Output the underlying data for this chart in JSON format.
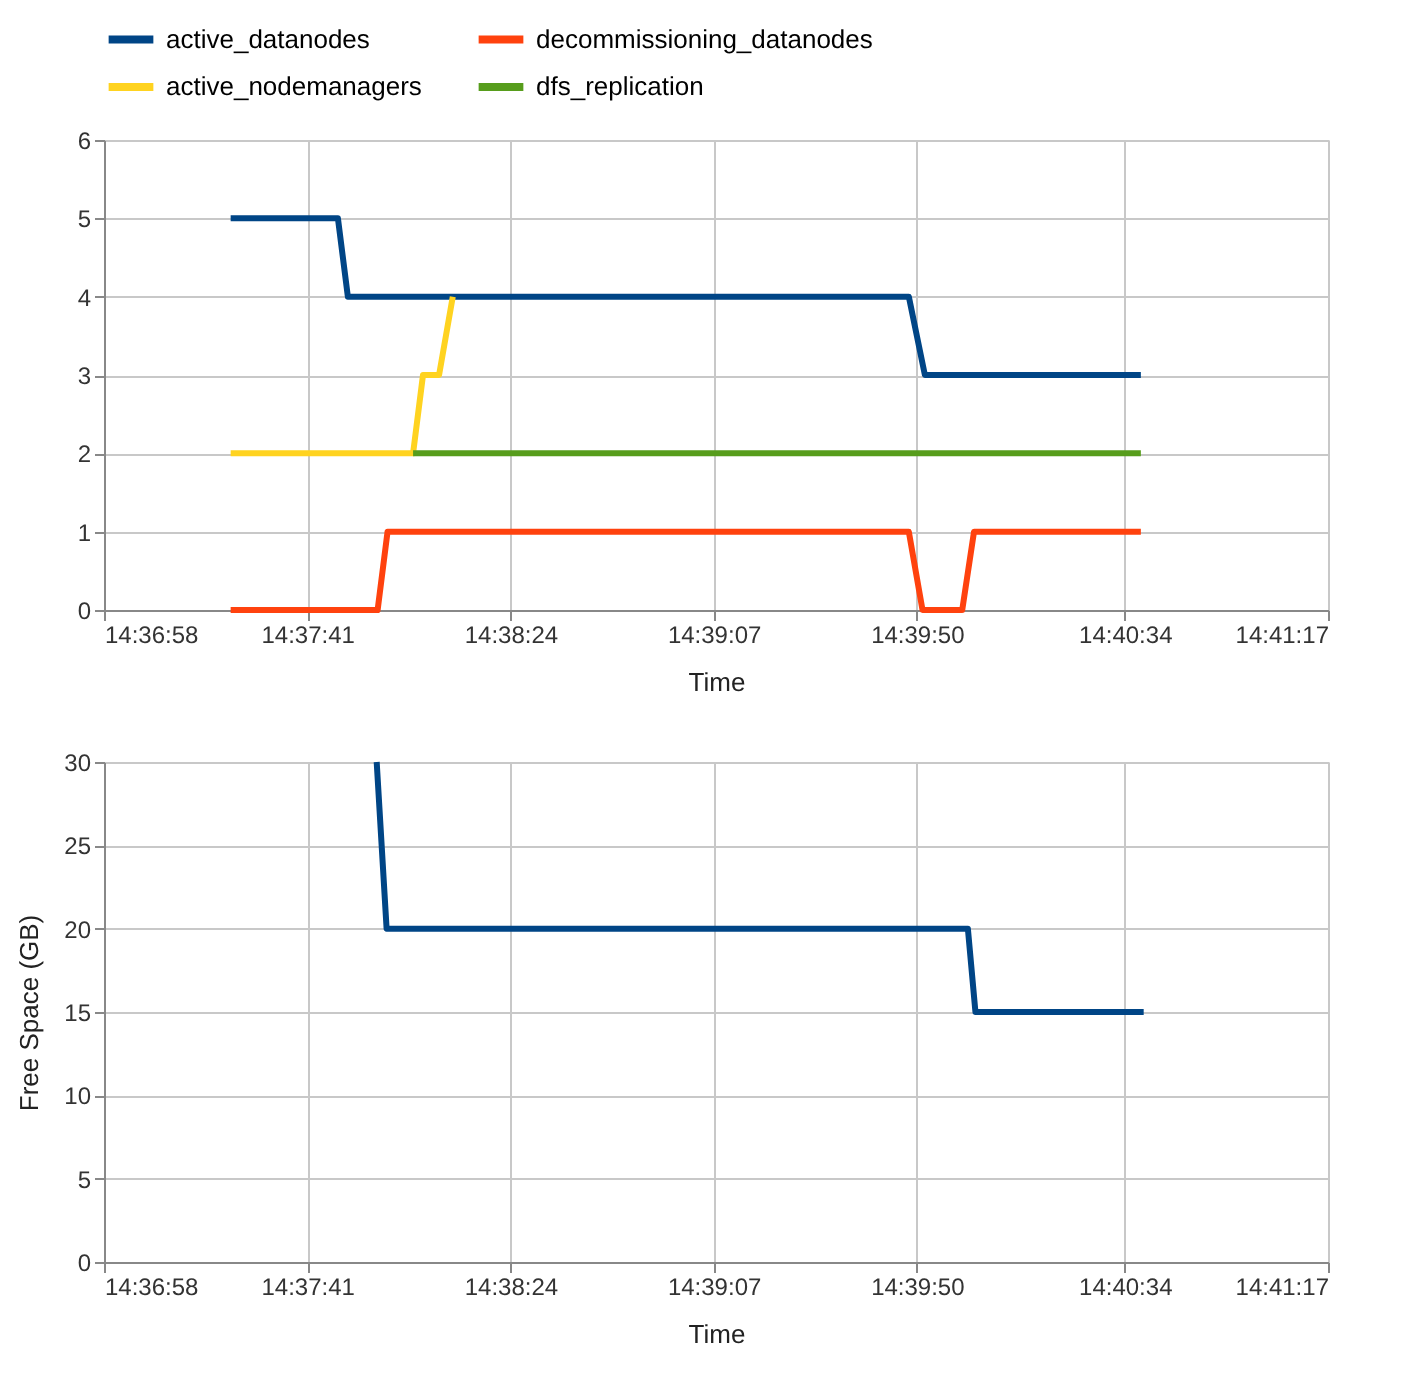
{
  "chart_data": [
    {
      "type": "line",
      "xlabel": "Time",
      "legend": "top",
      "grid": true,
      "marker": "none",
      "line_style": "solid",
      "xlim": [
        14.616111,
        14.688056
      ],
      "xticks": [
        {
          "value": 14.616111,
          "label": "14:36:58"
        },
        {
          "value": 14.628056,
          "label": "14:37:41"
        },
        {
          "value": 14.64,
          "label": "14:38:24"
        },
        {
          "value": 14.651944,
          "label": "14:39:07"
        },
        {
          "value": 14.663889,
          "label": "14:39:50"
        },
        {
          "value": 14.676111,
          "label": "14:40:34"
        },
        {
          "value": 14.688056,
          "label": "14:41:17"
        }
      ],
      "ylim": [
        0,
        6
      ],
      "yticks": [
        0,
        1,
        2,
        3,
        4,
        5,
        6
      ],
      "series": [
        {
          "name": "active_datanodes",
          "color": "#004586",
          "x": [
            14.623556,
            14.629861,
            14.630444,
            14.663417,
            14.664361,
            14.677056
          ],
          "values": [
            5,
            5,
            4,
            4,
            3,
            3
          ]
        },
        {
          "name": "decommissioning_datanodes",
          "color": "#ff420e",
          "x": [
            14.623556,
            14.632194,
            14.632778,
            14.663417,
            14.664222,
            14.666556,
            14.66725,
            14.677056
          ],
          "values": [
            0,
            0,
            1,
            1,
            0,
            0,
            1,
            1
          ]
        },
        {
          "name": "active_nodemanagers",
          "color": "#ffd320",
          "x": [
            14.623556,
            14.634278,
            14.634861,
            14.635806,
            14.636611
          ],
          "values": [
            2,
            2,
            3,
            3,
            4
          ]
        },
        {
          "name": "dfs_replication",
          "color": "#579d1c",
          "x": [
            14.634278,
            14.677056
          ],
          "values": [
            2,
            2
          ]
        }
      ]
    },
    {
      "type": "line",
      "xlabel": "Time",
      "ylabel": "Free Space (GB)",
      "legend": false,
      "grid": true,
      "marker": "none",
      "line_style": "solid",
      "xlim": [
        14.616111,
        14.688056
      ],
      "xticks": [
        {
          "value": 14.616111,
          "label": "14:36:58"
        },
        {
          "value": 14.628056,
          "label": "14:37:41"
        },
        {
          "value": 14.64,
          "label": "14:38:24"
        },
        {
          "value": 14.651944,
          "label": "14:39:07"
        },
        {
          "value": 14.663889,
          "label": "14:39:50"
        },
        {
          "value": 14.676111,
          "label": "14:40:34"
        },
        {
          "value": 14.688056,
          "label": "14:41:17"
        }
      ],
      "ylim": [
        0,
        30
      ],
      "yticks": [
        0,
        5,
        10,
        15,
        20,
        25,
        30
      ],
      "series": [
        {
          "color": "#004586",
          "x": [
            14.632139,
            14.632722,
            14.666889,
            14.667333,
            14.677222
          ],
          "values": [
            30,
            20,
            20,
            15,
            15
          ]
        }
      ]
    }
  ]
}
